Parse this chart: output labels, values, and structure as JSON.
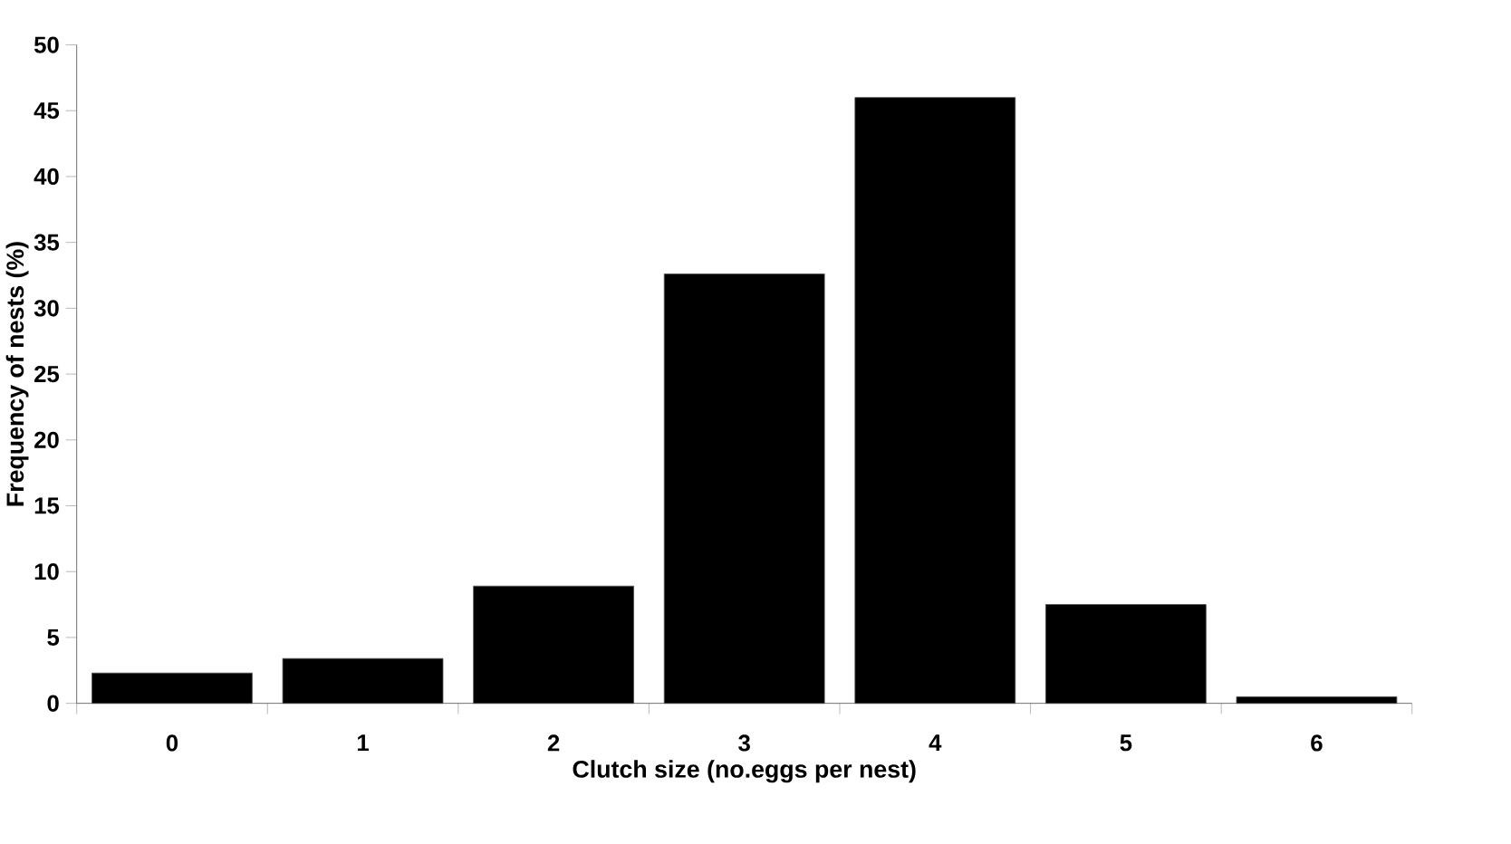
{
  "chart_data": {
    "type": "bar",
    "xlabel": "Clutch size (no.eggs per nest)",
    "ylabel": "Frequency of nests (%)",
    "categories": [
      "0",
      "1",
      "2",
      "3",
      "4",
      "5",
      "6"
    ],
    "values": [
      2.3,
      3.4,
      8.9,
      32.6,
      46.0,
      7.5,
      0.5
    ],
    "color": "#000000",
    "ylim": [
      0,
      50
    ],
    "yticks": [
      0,
      5,
      10,
      15,
      20,
      25,
      30,
      35,
      40,
      45,
      50
    ],
    "grid": false
  }
}
